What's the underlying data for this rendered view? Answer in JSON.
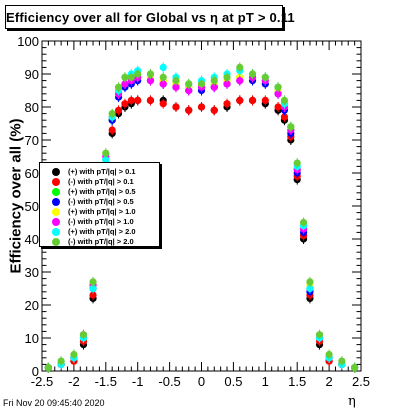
{
  "chart_data": {
    "type": "scatter",
    "title": "Efficiency over all for Global vs   η at pT > 0.11",
    "xlabel": "η",
    "ylabel": "Efficiency over all (%)",
    "xlim": [
      -2.5,
      2.5
    ],
    "ylim": [
      0,
      100
    ],
    "x_ticks": [
      "-2.5",
      "-2",
      "-1.5",
      "-1",
      "-0.5",
      "0",
      "0.5",
      "1",
      "1.5",
      "2",
      "2.5"
    ],
    "y_ticks": [
      "0",
      "10",
      "20",
      "30",
      "40",
      "50",
      "60",
      "70",
      "80",
      "90",
      "100"
    ],
    "grid": false,
    "legend_position": "left-middle",
    "series": [
      {
        "name": "(+) with pT/|q| > 0.1",
        "color": "#000000",
        "points": [
          [
            -2.4,
            1
          ],
          [
            -2.2,
            2
          ],
          [
            -2.0,
            3
          ],
          [
            -1.85,
            8
          ],
          [
            -1.7,
            22
          ],
          [
            -1.6,
            40
          ],
          [
            -1.5,
            60
          ],
          [
            -1.4,
            72
          ],
          [
            -1.3,
            78
          ],
          [
            -1.2,
            80
          ],
          [
            -1.1,
            81
          ],
          [
            -1.0,
            82
          ],
          [
            -0.8,
            82
          ],
          [
            -0.6,
            82
          ],
          [
            -0.4,
            80
          ],
          [
            -0.2,
            79
          ],
          [
            0.0,
            80
          ],
          [
            0.2,
            79
          ],
          [
            0.4,
            80
          ],
          [
            0.6,
            82
          ],
          [
            0.8,
            82
          ],
          [
            1.0,
            81
          ],
          [
            1.2,
            79
          ],
          [
            1.3,
            76
          ],
          [
            1.4,
            70
          ],
          [
            1.5,
            58
          ],
          [
            1.6,
            40
          ],
          [
            1.7,
            22
          ],
          [
            1.85,
            8
          ],
          [
            2.0,
            3
          ],
          [
            2.2,
            2
          ],
          [
            2.4,
            1
          ]
        ]
      },
      {
        "name": "(-) with pT/|q| > 0.1",
        "color": "#ff0000",
        "points": [
          [
            -2.4,
            1
          ],
          [
            -2.2,
            2
          ],
          [
            -2.0,
            3
          ],
          [
            -1.85,
            9
          ],
          [
            -1.7,
            23
          ],
          [
            -1.6,
            41
          ],
          [
            -1.5,
            61
          ],
          [
            -1.4,
            73
          ],
          [
            -1.3,
            79
          ],
          [
            -1.2,
            81
          ],
          [
            -1.1,
            82
          ],
          [
            -1.0,
            82
          ],
          [
            -0.8,
            82
          ],
          [
            -0.6,
            81
          ],
          [
            -0.4,
            80
          ],
          [
            -0.2,
            79
          ],
          [
            0.0,
            80
          ],
          [
            0.2,
            79
          ],
          [
            0.4,
            81
          ],
          [
            0.6,
            82
          ],
          [
            0.8,
            82
          ],
          [
            1.0,
            82
          ],
          [
            1.2,
            80
          ],
          [
            1.3,
            77
          ],
          [
            1.4,
            71
          ],
          [
            1.5,
            59
          ],
          [
            1.6,
            41
          ],
          [
            1.7,
            23
          ],
          [
            1.85,
            9
          ],
          [
            2.0,
            3
          ],
          [
            2.2,
            2
          ],
          [
            2.4,
            1
          ]
        ]
      },
      {
        "name": "(+) with pT/|q| > 0.5",
        "color": "#00ff00",
        "points": [
          [
            -2.4,
            1
          ],
          [
            -2.2,
            2
          ],
          [
            -2.0,
            4
          ],
          [
            -1.85,
            10
          ],
          [
            -1.7,
            25
          ],
          [
            -1.6,
            43
          ],
          [
            -1.5,
            63
          ],
          [
            -1.4,
            76
          ],
          [
            -1.3,
            84
          ],
          [
            -1.2,
            87
          ],
          [
            -1.1,
            88
          ],
          [
            -1.0,
            89
          ],
          [
            -0.8,
            89
          ],
          [
            -0.6,
            88
          ],
          [
            -0.4,
            87
          ],
          [
            -0.2,
            86
          ],
          [
            0.0,
            86
          ],
          [
            0.2,
            87
          ],
          [
            0.4,
            88
          ],
          [
            0.6,
            89
          ],
          [
            0.8,
            89
          ],
          [
            1.0,
            88
          ],
          [
            1.2,
            85
          ],
          [
            1.3,
            80
          ],
          [
            1.4,
            73
          ],
          [
            1.5,
            61
          ],
          [
            1.6,
            43
          ],
          [
            1.7,
            25
          ],
          [
            1.85,
            10
          ],
          [
            2.0,
            4
          ],
          [
            2.2,
            2
          ],
          [
            2.4,
            1
          ]
        ]
      },
      {
        "name": "(-) with pT/|q| > 0.5",
        "color": "#0000ff",
        "points": [
          [
            -2.4,
            1
          ],
          [
            -2.2,
            2
          ],
          [
            -2.0,
            4
          ],
          [
            -1.85,
            10
          ],
          [
            -1.7,
            25
          ],
          [
            -1.6,
            44
          ],
          [
            -1.5,
            64
          ],
          [
            -1.4,
            76
          ],
          [
            -1.3,
            83
          ],
          [
            -1.2,
            86
          ],
          [
            -1.1,
            87
          ],
          [
            -1.0,
            88
          ],
          [
            -0.8,
            88
          ],
          [
            -0.6,
            87
          ],
          [
            -0.4,
            86
          ],
          [
            -0.2,
            85
          ],
          [
            0.0,
            85
          ],
          [
            0.2,
            86
          ],
          [
            0.4,
            87
          ],
          [
            0.6,
            88
          ],
          [
            0.8,
            88
          ],
          [
            1.0,
            87
          ],
          [
            1.2,
            84
          ],
          [
            1.3,
            79
          ],
          [
            1.4,
            72
          ],
          [
            1.5,
            60
          ],
          [
            1.6,
            42
          ],
          [
            1.7,
            24
          ],
          [
            1.85,
            10
          ],
          [
            2.0,
            4
          ],
          [
            2.2,
            2
          ],
          [
            2.4,
            1
          ]
        ]
      },
      {
        "name": "(+) with pT/|q| > 1.0",
        "color": "#ffff00",
        "points": [
          [
            -2.4,
            1
          ],
          [
            -2.2,
            2
          ],
          [
            -2.0,
            4
          ],
          [
            -1.85,
            10
          ],
          [
            -1.7,
            26
          ],
          [
            -1.6,
            44
          ],
          [
            -1.5,
            64
          ],
          [
            -1.4,
            77
          ],
          [
            -1.3,
            84
          ],
          [
            -1.2,
            87
          ],
          [
            -1.1,
            89
          ],
          [
            -1.0,
            89
          ],
          [
            -0.8,
            89
          ],
          [
            -0.6,
            88
          ],
          [
            -0.4,
            87
          ],
          [
            -0.2,
            86
          ],
          [
            0.0,
            87
          ],
          [
            0.2,
            87
          ],
          [
            0.4,
            88
          ],
          [
            0.6,
            89
          ],
          [
            0.8,
            89
          ],
          [
            1.0,
            88
          ],
          [
            1.2,
            85
          ],
          [
            1.3,
            81
          ],
          [
            1.4,
            74
          ],
          [
            1.5,
            62
          ],
          [
            1.6,
            44
          ],
          [
            1.7,
            26
          ],
          [
            1.85,
            10
          ],
          [
            2.0,
            4
          ],
          [
            2.2,
            2
          ],
          [
            2.4,
            1
          ]
        ]
      },
      {
        "name": "(-) with pT/|q| > 1.0",
        "color": "#ff00ff",
        "points": [
          [
            -2.4,
            1
          ],
          [
            -2.2,
            2
          ],
          [
            -2.0,
            4
          ],
          [
            -1.85,
            11
          ],
          [
            -1.7,
            26
          ],
          [
            -1.6,
            45
          ],
          [
            -1.5,
            65
          ],
          [
            -1.4,
            77
          ],
          [
            -1.3,
            84
          ],
          [
            -1.2,
            87
          ],
          [
            -1.1,
            88
          ],
          [
            -1.0,
            89
          ],
          [
            -0.8,
            88
          ],
          [
            -0.6,
            87
          ],
          [
            -0.4,
            86
          ],
          [
            -0.2,
            85
          ],
          [
            0.0,
            86
          ],
          [
            0.2,
            86
          ],
          [
            0.4,
            87
          ],
          [
            0.6,
            88
          ],
          [
            0.8,
            89
          ],
          [
            1.0,
            88
          ],
          [
            1.2,
            84
          ],
          [
            1.3,
            80
          ],
          [
            1.4,
            73
          ],
          [
            1.5,
            61
          ],
          [
            1.6,
            43
          ],
          [
            1.7,
            25
          ],
          [
            1.85,
            10
          ],
          [
            2.0,
            4
          ],
          [
            2.2,
            2
          ],
          [
            2.4,
            1
          ]
        ]
      },
      {
        "name": "(+) with pT/|q| > 2.0",
        "color": "#00ffff",
        "points": [
          [
            -2.4,
            1
          ],
          [
            -2.2,
            2
          ],
          [
            -2.0,
            4
          ],
          [
            -1.85,
            10
          ],
          [
            -1.7,
            25
          ],
          [
            -1.6,
            44
          ],
          [
            -1.5,
            64
          ],
          [
            -1.4,
            77
          ],
          [
            -1.3,
            85
          ],
          [
            -1.2,
            89
          ],
          [
            -1.1,
            90
          ],
          [
            -1.0,
            91
          ],
          [
            -0.8,
            90
          ],
          [
            -0.6,
            92
          ],
          [
            -0.4,
            89
          ],
          [
            -0.2,
            87
          ],
          [
            0.0,
            88
          ],
          [
            0.2,
            89
          ],
          [
            0.4,
            90
          ],
          [
            0.6,
            91
          ],
          [
            0.8,
            90
          ],
          [
            1.0,
            89
          ],
          [
            1.2,
            86
          ],
          [
            1.3,
            81
          ],
          [
            1.4,
            74
          ],
          [
            1.5,
            62
          ],
          [
            1.6,
            44
          ],
          [
            1.7,
            25
          ],
          [
            1.85,
            10
          ],
          [
            2.0,
            4
          ],
          [
            2.2,
            2
          ],
          [
            2.4,
            1
          ]
        ]
      },
      {
        "name": "(-) with pT/|q| > 2.0",
        "color": "#66cc33",
        "points": [
          [
            -2.4,
            1
          ],
          [
            -2.2,
            3
          ],
          [
            -2.0,
            5
          ],
          [
            -1.85,
            11
          ],
          [
            -1.7,
            27
          ],
          [
            -1.6,
            45
          ],
          [
            -1.5,
            66
          ],
          [
            -1.4,
            78
          ],
          [
            -1.3,
            86
          ],
          [
            -1.2,
            89
          ],
          [
            -1.1,
            89
          ],
          [
            -1.0,
            90
          ],
          [
            -0.8,
            90
          ],
          [
            -0.6,
            89
          ],
          [
            -0.4,
            88
          ],
          [
            -0.2,
            87
          ],
          [
            0.0,
            87
          ],
          [
            0.2,
            88
          ],
          [
            0.4,
            89
          ],
          [
            0.6,
            92
          ],
          [
            0.8,
            90
          ],
          [
            1.0,
            89
          ],
          [
            1.2,
            86
          ],
          [
            1.3,
            82
          ],
          [
            1.4,
            74
          ],
          [
            1.5,
            63
          ],
          [
            1.6,
            45
          ],
          [
            1.7,
            27
          ],
          [
            1.85,
            11
          ],
          [
            2.0,
            5
          ],
          [
            2.2,
            3
          ],
          [
            2.4,
            1
          ]
        ]
      }
    ]
  },
  "footer": {
    "date": "Fri Nov 20 09:45:40 2020"
  }
}
